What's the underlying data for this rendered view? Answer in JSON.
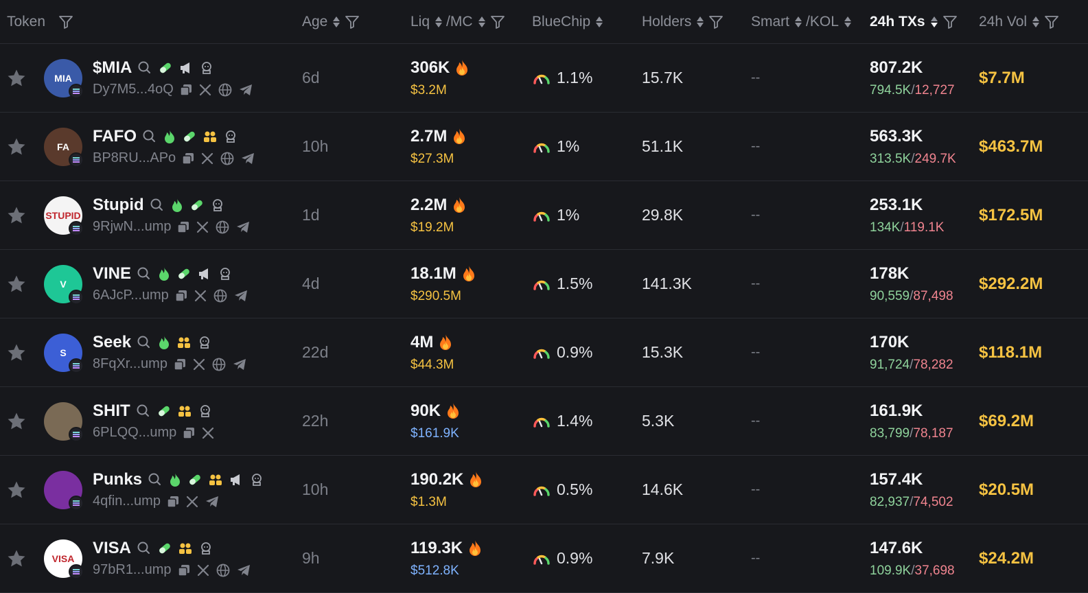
{
  "header": {
    "token": "Token",
    "age": "Age",
    "liq": "Liq",
    "mc": "/MC",
    "bluechip": "BlueChip",
    "holders": "Holders",
    "smart": "Smart",
    "kol": "/KOL",
    "txs": "24h TXs",
    "vol": "24h Vol"
  },
  "colors": {
    "accent_yellow": "#f5c242",
    "buy_green": "#8fd39c",
    "sell_red": "#f0848f",
    "mc_blue": "#7fb3ff"
  },
  "rows": [
    {
      "name": "$MIA",
      "address": "Dy7M5...4oQ",
      "age": "6d",
      "liq": "306K",
      "mc": "$3.2M",
      "mc_color": "yellow",
      "bluechip": "1.1%",
      "holders": "15.7K",
      "smart": "--",
      "txs": "807.2K",
      "buys": "794.5K",
      "sells": "12,727",
      "vol": "$7.7M",
      "icons": [
        "search-icon",
        "pill-icon",
        "megaphone-icon",
        "chef-icon"
      ],
      "links": [
        "copy-icon",
        "x-icon",
        "globe-icon",
        "telegram-icon"
      ],
      "avatar_color": "#3a5aa8",
      "avatar_text": "MIA"
    },
    {
      "name": "FAFO",
      "address": "BP8RU...APo",
      "age": "10h",
      "liq": "2.7M",
      "mc": "$27.3M",
      "mc_color": "yellow",
      "bluechip": "1%",
      "holders": "51.1K",
      "smart": "--",
      "txs": "563.3K",
      "buys": "313.5K",
      "sells": "249.7K",
      "vol": "$463.7M",
      "icons": [
        "search-icon",
        "flame-icon",
        "pill-icon",
        "users-icon",
        "chef-icon"
      ],
      "links": [
        "copy-icon",
        "x-icon",
        "globe-icon",
        "telegram-icon"
      ],
      "avatar_color": "#5a3a2c",
      "avatar_text": "FA"
    },
    {
      "name": "Stupid",
      "address": "9RjwN...ump",
      "age": "1d",
      "liq": "2.2M",
      "mc": "$19.2M",
      "mc_color": "yellow",
      "bluechip": "1%",
      "holders": "29.8K",
      "smart": "--",
      "txs": "253.1K",
      "buys": "134K",
      "sells": "119.1K",
      "vol": "$172.5M",
      "icons": [
        "search-icon",
        "flame-icon",
        "pill-icon",
        "chef-icon"
      ],
      "links": [
        "copy-icon",
        "x-icon",
        "globe-icon",
        "telegram-icon"
      ],
      "avatar_color": "#f4f4f4",
      "avatar_text": "STUPID"
    },
    {
      "name": "VINE",
      "address": "6AJcP...ump",
      "age": "4d",
      "liq": "18.1M",
      "mc": "$290.5M",
      "mc_color": "yellow",
      "bluechip": "1.5%",
      "holders": "141.3K",
      "smart": "--",
      "txs": "178K",
      "buys": "90,559",
      "sells": "87,498",
      "vol": "$292.2M",
      "icons": [
        "search-icon",
        "flame-icon",
        "pill-icon",
        "megaphone-icon",
        "chef-icon"
      ],
      "links": [
        "copy-icon",
        "x-icon",
        "globe-icon",
        "telegram-icon"
      ],
      "avatar_color": "#1ec796",
      "avatar_text": "V"
    },
    {
      "name": "Seek",
      "address": "8FqXr...ump",
      "age": "22d",
      "liq": "4M",
      "mc": "$44.3M",
      "mc_color": "yellow",
      "bluechip": "0.9%",
      "holders": "15.3K",
      "smart": "--",
      "txs": "170K",
      "buys": "91,724",
      "sells": "78,282",
      "vol": "$118.1M",
      "icons": [
        "search-icon",
        "flame-icon",
        "users-icon",
        "chef-icon"
      ],
      "links": [
        "copy-icon",
        "x-icon",
        "globe-icon",
        "telegram-icon"
      ],
      "avatar_color": "#3c5fd6",
      "avatar_text": "S"
    },
    {
      "name": "SHIT",
      "address": "6PLQQ...ump",
      "age": "22h",
      "liq": "90K",
      "mc": "$161.9K",
      "mc_color": "blue",
      "bluechip": "1.4%",
      "holders": "5.3K",
      "smart": "--",
      "txs": "161.9K",
      "buys": "83,799",
      "sells": "78,187",
      "vol": "$69.2M",
      "icons": [
        "search-icon",
        "pill-icon",
        "users-icon",
        "chef-icon"
      ],
      "links": [
        "copy-icon",
        "x-icon"
      ],
      "avatar_color": "#7a6a55",
      "avatar_text": ""
    },
    {
      "name": "Punks",
      "address": "4qfin...ump",
      "age": "10h",
      "liq": "190.2K",
      "mc": "$1.3M",
      "mc_color": "yellow",
      "bluechip": "0.5%",
      "holders": "14.6K",
      "smart": "--",
      "txs": "157.4K",
      "buys": "82,937",
      "sells": "74,502",
      "vol": "$20.5M",
      "icons": [
        "search-icon",
        "flame-icon",
        "pill-icon",
        "users-icon",
        "megaphone-icon",
        "chef-icon"
      ],
      "links": [
        "copy-icon",
        "x-icon",
        "telegram-icon"
      ],
      "avatar_color": "#7a2fa0",
      "avatar_text": ""
    },
    {
      "name": "VISA",
      "address": "97bR1...ump",
      "age": "9h",
      "liq": "119.3K",
      "mc": "$512.8K",
      "mc_color": "blue",
      "bluechip": "0.9%",
      "holders": "7.9K",
      "smart": "--",
      "txs": "147.6K",
      "buys": "109.9K",
      "sells": "37,698",
      "vol": "$24.2M",
      "icons": [
        "search-icon",
        "pill-icon",
        "users-icon",
        "chef-icon"
      ],
      "links": [
        "copy-icon",
        "x-icon",
        "globe-icon",
        "telegram-icon"
      ],
      "avatar_color": "#ffffff",
      "avatar_text": "VISA"
    }
  ]
}
